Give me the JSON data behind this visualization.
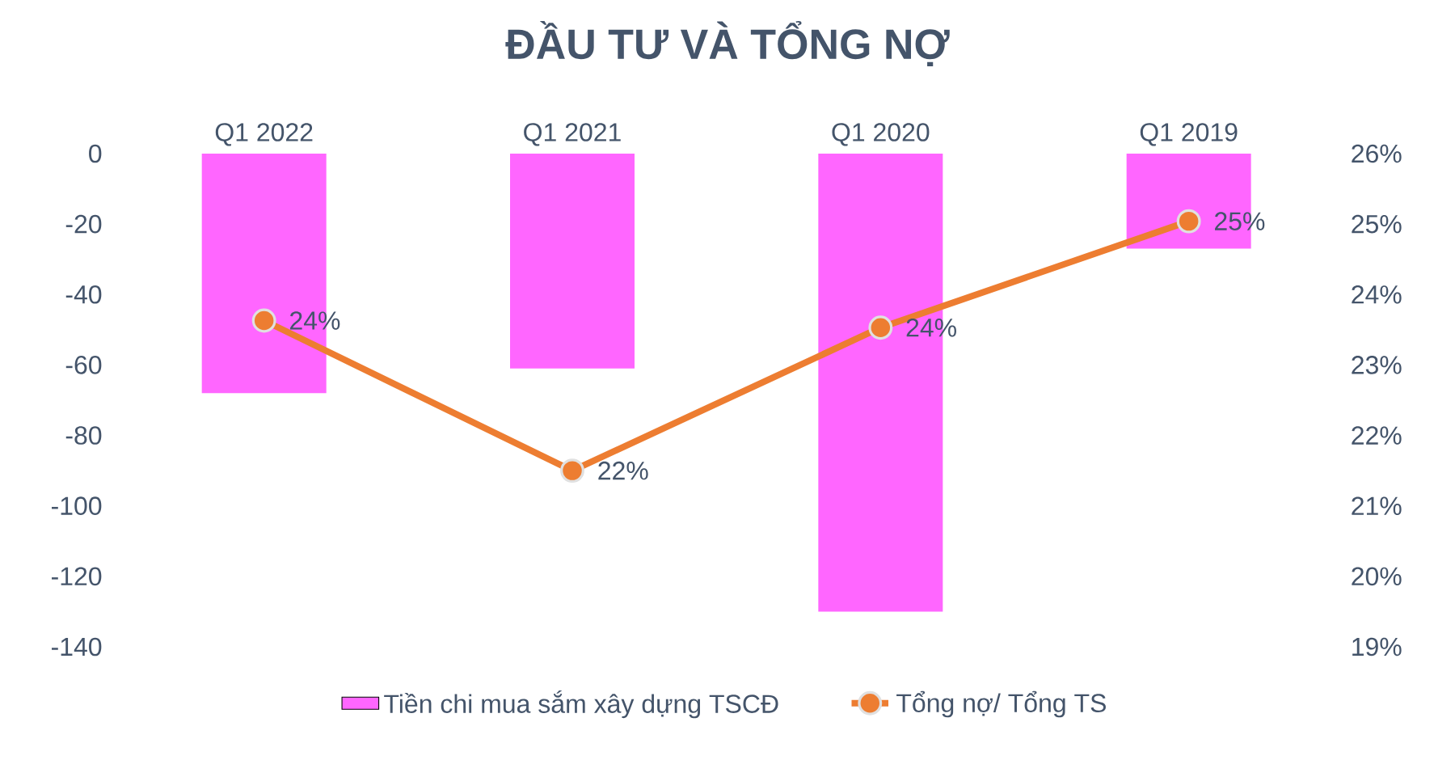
{
  "chart_data": {
    "type": "bar",
    "title": "ĐẦU TƯ VÀ TỔNG NỢ",
    "categories": [
      "Q1 2022",
      "Q1 2021",
      "Q1 2020",
      "Q1 2019"
    ],
    "series": [
      {
        "name": "Tiền chi mua sắm xây dựng TSCĐ",
        "color": "#ff66ff",
        "values": [
          -68,
          -61,
          -130,
          -27
        ]
      },
      {
        "name": "Tổng nợ/ Tổng TS",
        "type": "line",
        "axis": "y2",
        "color": "#ed7d31",
        "marker": "circle",
        "values": [
          23.63,
          21.5,
          23.53,
          25.04
        ],
        "value_labels": [
          "24%",
          "22%",
          "24%",
          "25%"
        ]
      }
    ],
    "ylim": [
      -140,
      0
    ],
    "yticks": [
      -140,
      -120,
      -100,
      -80,
      -60,
      -40,
      -20,
      0
    ],
    "y2lim": [
      19,
      26
    ],
    "y2ticks": [
      {
        "value": 19,
        "label": "19%"
      },
      {
        "value": 20,
        "label": "20%"
      },
      {
        "value": 21,
        "label": "21%"
      },
      {
        "value": 22,
        "label": "22%"
      },
      {
        "value": 23,
        "label": "23%"
      },
      {
        "value": 24,
        "label": "24%"
      },
      {
        "value": 25,
        "label": "25%"
      },
      {
        "value": 26,
        "label": "26%"
      }
    ],
    "legend": "bottom"
  }
}
